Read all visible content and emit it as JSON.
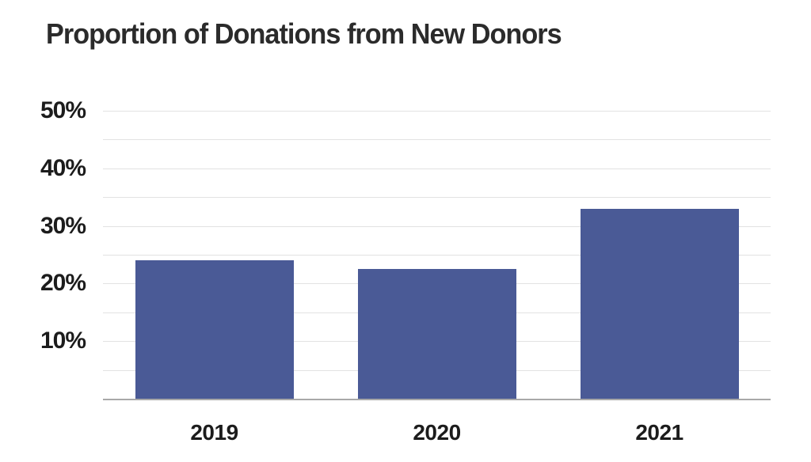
{
  "chart_data": {
    "type": "bar",
    "title": "Proportion of Donations from New Donors",
    "categories": [
      "2019",
      "2020",
      "2021"
    ],
    "values": [
      24,
      22.5,
      33
    ],
    "unit": "%",
    "xlabel": "",
    "ylabel": "",
    "ylim": [
      0,
      50
    ],
    "gridline_step": 5,
    "ytick_label_step": 10,
    "grid": "on",
    "legend": "none",
    "bar_color": "#4a5a96",
    "gridline_color": "#e2e2e2",
    "axis_line_color": "#a8a8a8",
    "text_color": "#1c1c1c",
    "title_color": "#2b2b2b",
    "background_color": "#ffffff"
  }
}
